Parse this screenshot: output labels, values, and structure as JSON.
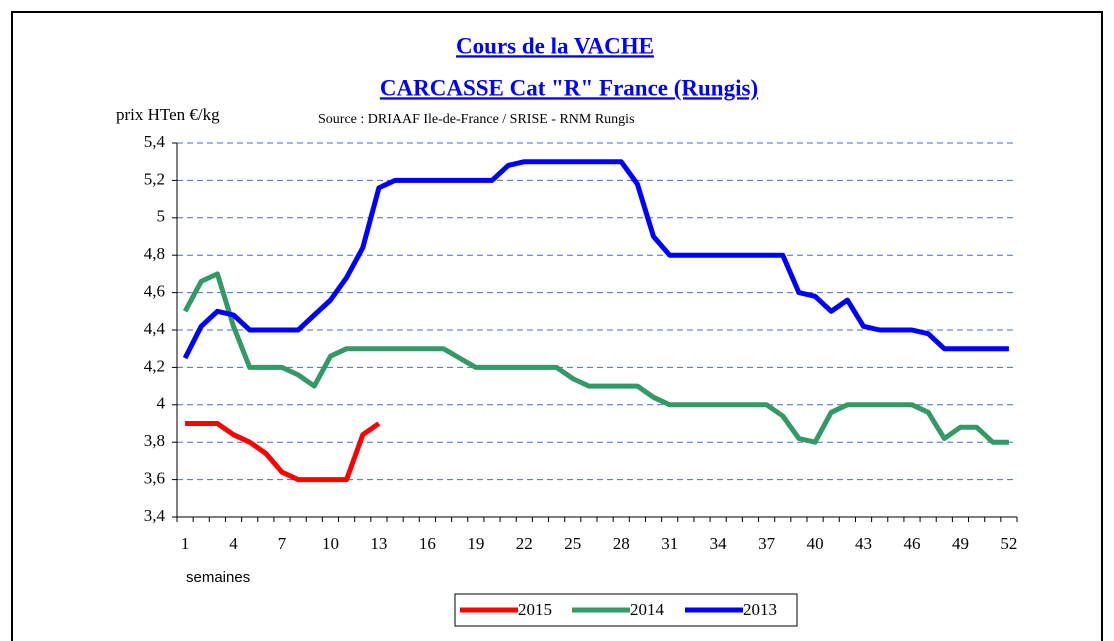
{
  "chart_data": {
    "type": "line",
    "title": [
      "Cours de la VACHE",
      "CARCASSE Cat \"R\" France (Rungis)"
    ],
    "subtitle": "Source : DRIAAF Ile-de-France / SRISE - RNM Rungis",
    "y_label": "prix HTen  €/kg",
    "x_label": "semaines",
    "categories": [
      "1",
      null,
      null,
      "4",
      null,
      null,
      "7",
      null,
      null,
      "10",
      null,
      null,
      "13",
      null,
      null,
      "16",
      null,
      null,
      "19",
      null,
      null,
      "22",
      null,
      null,
      "25",
      null,
      null,
      "28",
      null,
      null,
      "31",
      null,
      null,
      "34",
      null,
      null,
      "37",
      null,
      null,
      "40",
      null,
      null,
      "43",
      null,
      null,
      "46",
      null,
      null,
      "49",
      null,
      null,
      "52"
    ],
    "series": [
      {
        "name": "2015",
        "color": "#ff0000",
        "values": [
          3.9,
          3.9,
          3.9,
          3.84,
          3.8,
          3.74,
          3.64,
          3.6,
          3.6,
          3.6,
          3.6,
          3.84,
          3.9,
          null,
          null,
          null,
          null,
          null,
          null,
          null,
          null,
          null,
          null,
          null,
          null,
          null,
          null,
          null,
          null,
          null,
          null,
          null,
          null,
          null,
          null,
          null,
          null,
          null,
          null,
          null,
          null,
          null,
          null,
          null,
          null,
          null,
          null,
          null,
          null,
          null,
          null,
          null
        ]
      },
      {
        "name": "2014",
        "color": "#339966",
        "values": [
          4.5,
          4.66,
          4.7,
          4.42,
          4.2,
          4.2,
          4.2,
          4.16,
          4.1,
          4.26,
          4.3,
          4.3,
          4.3,
          4.3,
          4.3,
          4.3,
          4.3,
          4.25,
          4.2,
          4.2,
          4.2,
          4.2,
          4.2,
          4.2,
          4.14,
          4.1,
          4.1,
          4.1,
          4.1,
          4.04,
          4,
          4,
          4,
          4,
          4,
          4,
          4,
          3.94,
          3.82,
          3.8,
          3.96,
          4,
          4,
          4,
          4,
          4,
          3.96,
          3.82,
          3.88,
          3.88,
          3.8,
          3.8
        ]
      },
      {
        "name": "2013",
        "color": "#0000ff",
        "values": [
          4.25,
          4.42,
          4.5,
          4.48,
          4.4,
          4.4,
          4.4,
          4.4,
          4.48,
          4.56,
          4.68,
          4.84,
          5.16,
          5.2,
          5.2,
          5.2,
          5.2,
          5.2,
          5.2,
          5.2,
          5.28,
          5.3,
          5.3,
          5.3,
          5.3,
          5.3,
          5.3,
          5.3,
          5.18,
          4.9,
          4.8,
          4.8,
          4.8,
          4.8,
          4.8,
          4.8,
          4.8,
          4.8,
          4.6,
          4.58,
          4.5,
          4.56,
          4.42,
          4.4,
          4.4,
          4.4,
          4.38,
          4.3,
          4.3,
          4.3,
          4.3,
          4.3
        ]
      }
    ],
    "ylim": [
      3.4,
      5.4
    ],
    "yticks": [
      {
        "value": 3.4,
        "label": "3,4"
      },
      {
        "value": 3.6,
        "label": "3,6"
      },
      {
        "value": 3.8,
        "label": "3,8"
      },
      {
        "value": 4,
        "label": "4"
      },
      {
        "value": 4.2,
        "label": "4,2"
      },
      {
        "value": 4.4,
        "label": "4,4"
      },
      {
        "value": 4.6,
        "label": "4,6"
      },
      {
        "value": 4.8,
        "label": "4,8"
      },
      {
        "value": 5,
        "label": "5"
      },
      {
        "value": 5.2,
        "label": "5,2"
      },
      {
        "value": 5.4,
        "label": "5,4"
      }
    ],
    "grid": true,
    "legend": "bottom"
  }
}
